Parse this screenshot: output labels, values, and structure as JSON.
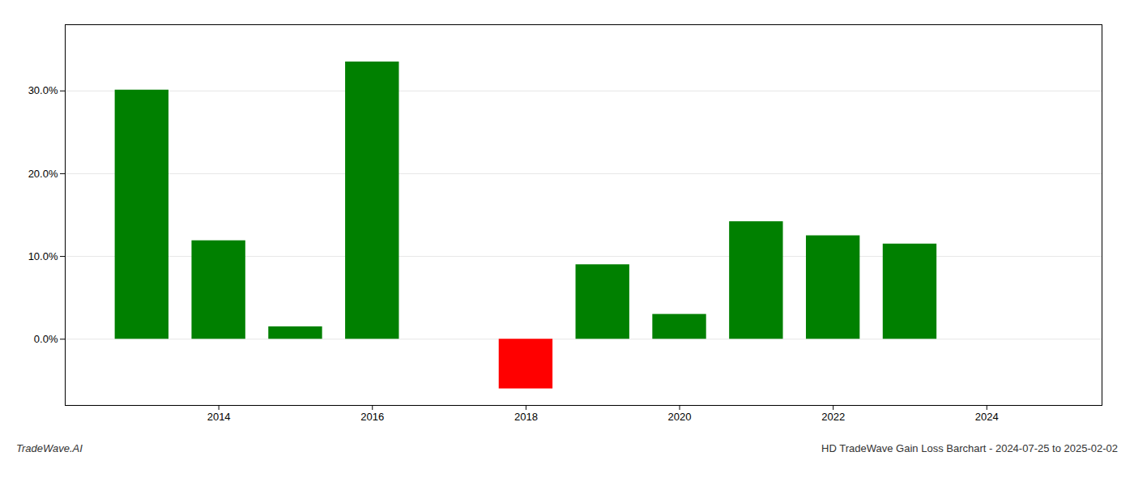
{
  "chart_data": {
    "type": "bar",
    "x": [
      2013,
      2014,
      2015,
      2016,
      2018,
      2019,
      2020,
      2021,
      2022,
      2023
    ],
    "values": [
      0.301,
      0.119,
      0.015,
      0.335,
      -0.06,
      0.09,
      0.03,
      0.142,
      0.125,
      0.115
    ],
    "colors": [
      "#008000",
      "#008000",
      "#008000",
      "#008000",
      "#ff0000",
      "#008000",
      "#008000",
      "#008000",
      "#008000",
      "#008000"
    ],
    "xlim": [
      2012.0,
      2025.5
    ],
    "xticks": [
      2014,
      2016,
      2018,
      2020,
      2022,
      2024
    ],
    "ylim": [
      -0.08,
      0.38
    ],
    "yticks": [
      {
        "value": 0.0,
        "label": "0.0%"
      },
      {
        "value": 0.1,
        "label": "10.0%"
      },
      {
        "value": 0.2,
        "label": "20.0%"
      },
      {
        "value": 0.3,
        "label": "30.0%"
      }
    ],
    "grid": true,
    "annotations": [
      "TradeWave.AI",
      "HD TradeWave Gain Loss Barchart - 2024-07-25 to 2025-02-02"
    ]
  }
}
